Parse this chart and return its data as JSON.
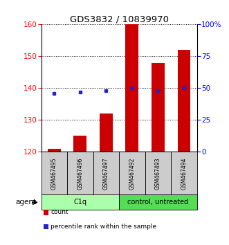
{
  "title": "GDS3832 / 10839970",
  "samples": [
    "GSM467495",
    "GSM467496",
    "GSM467497",
    "GSM467492",
    "GSM467493",
    "GSM467494"
  ],
  "groups": [
    {
      "label": "C1q",
      "color": "#aaffaa",
      "indices": [
        0,
        1,
        2
      ]
    },
    {
      "label": "control, untreated",
      "color": "#55dd55",
      "indices": [
        3,
        4,
        5
      ]
    }
  ],
  "counts": [
    121,
    125,
    132,
    160,
    148,
    152
  ],
  "percentile_ranks": [
    46,
    47,
    48,
    50,
    48,
    50
  ],
  "count_baseline": 120,
  "ylim_left": [
    120,
    160
  ],
  "ylim_right": [
    0,
    100
  ],
  "yticks_left": [
    120,
    130,
    140,
    150,
    160
  ],
  "yticks_right": [
    0,
    25,
    50,
    75,
    100
  ],
  "bar_color": "#cc0000",
  "dot_color": "#2222cc",
  "bar_width": 0.5,
  "agent_label": "agent",
  "legend_items": [
    {
      "label": "count",
      "color": "#cc0000"
    },
    {
      "label": "percentile rank within the sample",
      "color": "#2222cc"
    }
  ]
}
